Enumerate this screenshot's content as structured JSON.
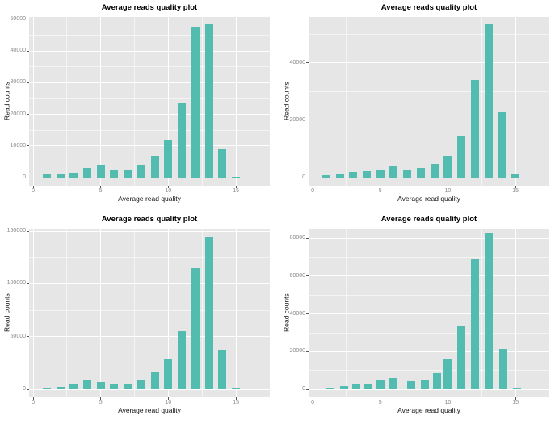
{
  "colors": {
    "bar": "#52BCB0",
    "panel": "#E6E6E6",
    "grid_major": "#FFFFFF",
    "tick_label": "#8A8A8A",
    "text": "#000000",
    "page_background": "#FFFFFF"
  },
  "chart_data": [
    {
      "type": "bar",
      "position": "top-left",
      "title": "Average reads quality plot",
      "xlabel": "Average read quality",
      "ylabel": "Read counts",
      "x": [
        1,
        2,
        3,
        4,
        5,
        6,
        7,
        8,
        9,
        10,
        11,
        12,
        13,
        14,
        15
      ],
      "values": [
        1300,
        1200,
        1700,
        3200,
        4100,
        2250,
        2500,
        4000,
        6900,
        12000,
        23700,
        47300,
        48300,
        9000,
        250
      ],
      "xticks": [
        0,
        5,
        10,
        15
      ],
      "yticks": [
        0,
        10000,
        20000,
        30000,
        40000,
        50000
      ],
      "xlim": [
        -0.3,
        17.5
      ],
      "ylim": [
        -2500,
        50700
      ],
      "grid": true,
      "legend": false
    },
    {
      "type": "bar",
      "position": "top-right",
      "title": "Average reads quality plot",
      "xlabel": "Average read quality",
      "ylabel": "Read counts",
      "x": [
        1,
        2,
        3,
        4,
        5,
        6,
        7,
        8,
        9,
        10,
        11,
        12,
        13,
        14,
        15
      ],
      "values": [
        900,
        1300,
        2000,
        2200,
        2900,
        4400,
        2900,
        3500,
        4700,
        7500,
        14300,
        34000,
        53500,
        22800,
        1100
      ],
      "xticks": [
        0,
        5,
        10,
        15
      ],
      "yticks": [
        0,
        20000,
        40000
      ],
      "xlim": [
        -0.3,
        17.5
      ],
      "ylim": [
        -2750,
        55900
      ],
      "grid": true,
      "legend": false
    },
    {
      "type": "bar",
      "position": "bottom-left",
      "title": "Average reads quality plot",
      "xlabel": "Average read quality",
      "ylabel": "Read counts",
      "x": [
        1,
        2,
        3,
        4,
        5,
        6,
        7,
        8,
        9,
        10,
        11,
        12,
        13,
        14,
        15
      ],
      "values": [
        2000,
        2600,
        5000,
        8800,
        6700,
        4600,
        5500,
        8900,
        16900,
        28800,
        55000,
        114500,
        145000,
        37800,
        600
      ],
      "xticks": [
        0,
        5,
        10,
        15
      ],
      "yticks": [
        0,
        50000,
        100000,
        150000
      ],
      "xlim": [
        -0.3,
        17.5
      ],
      "ylim": [
        -7500,
        152300
      ],
      "grid": true,
      "legend": false
    },
    {
      "type": "bar",
      "position": "bottom-right",
      "title": "Average reads quality plot",
      "xlabel": "Average read quality",
      "ylabel": "Read counts",
      "x": [
        1.3,
        2.3,
        3.2,
        4.1,
        5.0,
        5.9,
        7.3,
        8.3,
        9.2,
        10.0,
        11.0,
        12.0,
        13.0,
        14.1,
        15.1
      ],
      "values": [
        1000,
        2000,
        2700,
        3100,
        5000,
        6000,
        4500,
        5000,
        8800,
        15900,
        33300,
        69000,
        82500,
        21300,
        300
      ],
      "xticks": [
        0,
        5,
        10,
        15
      ],
      "yticks": [
        0,
        20000,
        40000,
        60000,
        80000
      ],
      "xlim": [
        -0.3,
        17.5
      ],
      "ylim": [
        -4200,
        85200
      ],
      "grid": true,
      "legend": false
    }
  ]
}
